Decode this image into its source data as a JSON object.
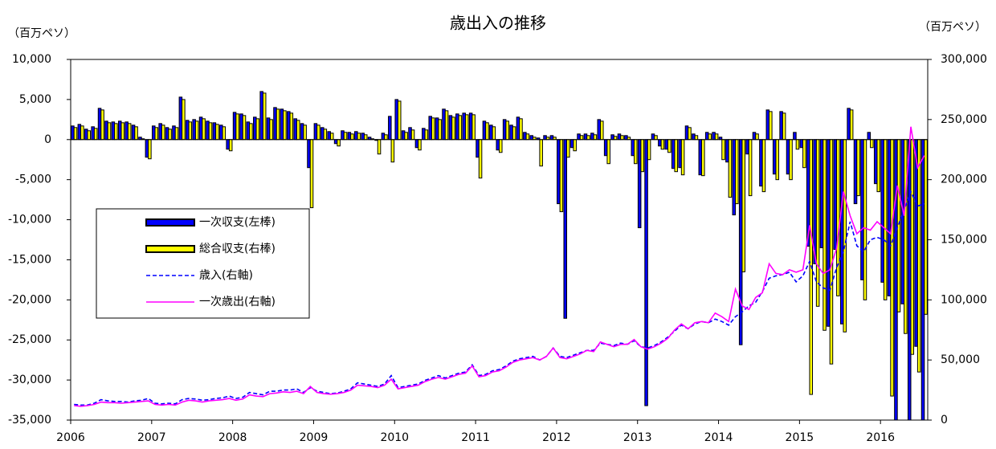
{
  "chart_data": {
    "type": "bar",
    "title": "歳出入の推移",
    "y_unit": "（百万ペソ）",
    "y2_unit": "（百万ペソ）",
    "legend": "middle-left",
    "categories": [
      "2006",
      null,
      null,
      null,
      null,
      null,
      null,
      null,
      null,
      null,
      null,
      null,
      "2007",
      null,
      null,
      null,
      null,
      null,
      null,
      null,
      null,
      null,
      null,
      null,
      "2008",
      null,
      null,
      null,
      null,
      null,
      null,
      null,
      null,
      null,
      null,
      null,
      "2009",
      null,
      null,
      null,
      null,
      null,
      null,
      null,
      null,
      null,
      null,
      null,
      "2010",
      null,
      null,
      null,
      null,
      null,
      null,
      null,
      null,
      null,
      null,
      null,
      "2011",
      null,
      null,
      null,
      null,
      null,
      null,
      null,
      null,
      null,
      null,
      null,
      "2012",
      null,
      null,
      null,
      null,
      null,
      null,
      null,
      null,
      null,
      null,
      null,
      "2013",
      null,
      null,
      null,
      null,
      null,
      null,
      null,
      null,
      null,
      null,
      null,
      "2014",
      null,
      null,
      null,
      null,
      null,
      null,
      null,
      null,
      null,
      null,
      null,
      "2015",
      null,
      null,
      null,
      null,
      null,
      null,
      null,
      null,
      null,
      null,
      null,
      "2016",
      null,
      null,
      null,
      null,
      null,
      null
    ],
    "ylim": [
      -35000,
      10000
    ],
    "yticks": [
      {
        "value": -35000,
        "label": "-35,000"
      },
      {
        "value": -30000,
        "label": "-30,000"
      },
      {
        "value": -25000,
        "label": "-25,000"
      },
      {
        "value": -20000,
        "label": "-20,000"
      },
      {
        "value": -15000,
        "label": "-15,000"
      },
      {
        "value": -10000,
        "label": "-10,000"
      },
      {
        "value": -5000,
        "label": "-5,000"
      },
      0,
      {
        "value": 5000,
        "label": "5,000"
      },
      {
        "value": 10000,
        "label": "10,000"
      }
    ],
    "y2lim": [
      0,
      300000
    ],
    "y2ticks": [
      0,
      {
        "value": 50000,
        "label": "50,000"
      },
      {
        "value": 100000,
        "label": "100,000"
      },
      {
        "value": 150000,
        "label": "150,000"
      },
      {
        "value": 200000,
        "label": "200,000"
      },
      {
        "value": 250000,
        "label": "250,000"
      },
      {
        "value": 300000,
        "label": "300,000"
      }
    ],
    "series": [
      {
        "name": "一次収支(左棒)",
        "color": "#0000ff",
        "type": "bar",
        "values": [
          1700,
          1900,
          1300,
          1600,
          3900,
          2300,
          2200,
          2300,
          2200,
          1800,
          300,
          -2200,
          1700,
          2000,
          1500,
          1700,
          5300,
          2400,
          2500,
          2800,
          2300,
          2100,
          1800,
          -1200,
          3400,
          3200,
          2200,
          2800,
          6000,
          2700,
          4000,
          3800,
          3500,
          2600,
          2000,
          -3500,
          2000,
          1500,
          1000,
          -500,
          1100,
          900,
          1000,
          800,
          300,
          -100,
          800,
          2900,
          5000,
          1100,
          1500,
          -1000,
          1400,
          2900,
          2700,
          3800,
          3000,
          3200,
          3300,
          3300,
          -2200,
          2300,
          1800,
          -1300,
          2500,
          1800,
          2800,
          900,
          500,
          200,
          500,
          500,
          -8000,
          -22300,
          -1000,
          700,
          700,
          800,
          2500,
          -2000,
          600,
          700,
          500,
          -2000,
          -11000,
          -33200,
          700,
          -800,
          -1200,
          -3600,
          -3500,
          1700,
          700,
          -4400,
          900,
          900,
          300,
          -2800,
          -9400,
          -25600,
          -1800,
          900,
          -5800,
          3700,
          -4300,
          3500,
          -4300,
          900,
          -1000,
          -13300,
          -15500,
          -13500,
          -23300,
          -13700,
          -23000,
          3900,
          -8000,
          -17500,
          900,
          -5500,
          -17800,
          -19500,
          -35000,
          -20500,
          -35000,
          -25800,
          -35000
        ]
      },
      {
        "name": "総合収支(右棒)",
        "color": "#ffff00",
        "type": "bar",
        "values": [
          1500,
          1700,
          1100,
          1400,
          3700,
          2100,
          2000,
          2100,
          2000,
          1600,
          100,
          -2400,
          1500,
          1800,
          1300,
          1500,
          5000,
          2200,
          2300,
          2600,
          2100,
          1900,
          1600,
          -1400,
          3200,
          3000,
          2000,
          2600,
          5800,
          2500,
          3800,
          3600,
          3300,
          2400,
          1800,
          -8500,
          1800,
          1300,
          800,
          -800,
          900,
          700,
          800,
          600,
          100,
          -1800,
          600,
          -2800,
          4800,
          900,
          1200,
          -1300,
          1200,
          2700,
          2500,
          3600,
          2800,
          3000,
          3100,
          3100,
          -4800,
          2100,
          1600,
          -1600,
          2300,
          1600,
          2600,
          700,
          300,
          -3300,
          300,
          300,
          -9000,
          -2200,
          -1400,
          500,
          500,
          600,
          2300,
          -3000,
          400,
          500,
          300,
          -3000,
          -4000,
          -2500,
          500,
          -1200,
          -1600,
          -4000,
          -4400,
          1500,
          500,
          -4500,
          700,
          700,
          -2500,
          -7200,
          -8000,
          -16500,
          -7000,
          700,
          -6500,
          3500,
          -5000,
          3300,
          -5000,
          -1200,
          -3500,
          -31800,
          -20800,
          -23800,
          -28000,
          -19500,
          -24000,
          3700,
          -7000,
          -20000,
          -1000,
          -6500,
          -20000,
          -32000,
          -21500,
          -24200,
          -26800,
          -29000,
          -21800
        ]
      },
      {
        "name": "歳入(右軸)",
        "color": "#0000ff",
        "type": "line",
        "style": "dashed",
        "axis": "y2",
        "values": [
          13000,
          12500,
          12500,
          14000,
          17000,
          16000,
          15500,
          15500,
          15000,
          16000,
          16500,
          18000,
          14000,
          13500,
          14000,
          13500,
          17000,
          18000,
          17500,
          16500,
          17000,
          18000,
          18500,
          20000,
          18000,
          19000,
          23000,
          22000,
          21000,
          24000,
          24000,
          25000,
          25000,
          26000,
          23000,
          27000,
          24000,
          23000,
          22000,
          22500,
          24000,
          26000,
          31000,
          30000,
          29000,
          28000,
          30000,
          37000,
          27000,
          28000,
          29000,
          30000,
          33000,
          35000,
          37000,
          35000,
          37000,
          39000,
          40000,
          46000,
          37000,
          38000,
          41000,
          42000,
          45000,
          49000,
          51000,
          52000,
          53000,
          50000,
          53000,
          60000,
          53000,
          52000,
          54000,
          56000,
          58000,
          58000,
          64000,
          63000,
          62000,
          64000,
          63000,
          66000,
          61000,
          60000,
          62000,
          65000,
          69000,
          74000,
          79000,
          76000,
          80000,
          82000,
          81000,
          84000,
          82000,
          79000,
          86000,
          90000,
          95000,
          98000,
          107000,
          118000,
          120000,
          121000,
          123000,
          115000,
          120000,
          132000,
          115000,
          110000,
          108000,
          127000,
          140000,
          165000,
          145000,
          140000,
          150000,
          152000,
          150000,
          145000,
          160000,
          175000,
          190000,
          178000,
          180000
        ]
      },
      {
        "name": "一次歳出(右軸)",
        "color": "#ff00ff",
        "type": "line",
        "style": "solid",
        "axis": "y2",
        "values": [
          12000,
          11500,
          12000,
          13000,
          15000,
          14500,
          14500,
          14000,
          14500,
          15000,
          15500,
          16000,
          13000,
          12500,
          13000,
          12500,
          15000,
          16500,
          16000,
          15000,
          16000,
          16500,
          17000,
          18000,
          16500,
          17500,
          21000,
          20000,
          19500,
          22000,
          22500,
          23500,
          23000,
          24000,
          22000,
          28000,
          23000,
          22000,
          21500,
          22000,
          23000,
          25000,
          29000,
          28500,
          28000,
          27000,
          29000,
          34000,
          26000,
          27000,
          28000,
          29000,
          32000,
          34000,
          35500,
          34000,
          36000,
          38000,
          39000,
          45000,
          36000,
          37000,
          40000,
          41000,
          44000,
          48000,
          50000,
          51000,
          52000,
          50000,
          53000,
          60000,
          52000,
          51000,
          53000,
          55000,
          58000,
          57000,
          65000,
          63000,
          61000,
          63000,
          63000,
          67000,
          61000,
          59000,
          61000,
          64000,
          68000,
          75000,
          80000,
          76000,
          81000,
          82000,
          81000,
          89000,
          86000,
          82000,
          109000,
          95000,
          92000,
          102000,
          106000,
          130000,
          122000,
          121000,
          125000,
          123000,
          125000,
          162000,
          130000,
          122000,
          125000,
          143000,
          190000,
          170000,
          155000,
          160000,
          158000,
          165000,
          160000,
          155000,
          195000,
          170000,
          244000,
          210000,
          220000
        ]
      }
    ]
  }
}
